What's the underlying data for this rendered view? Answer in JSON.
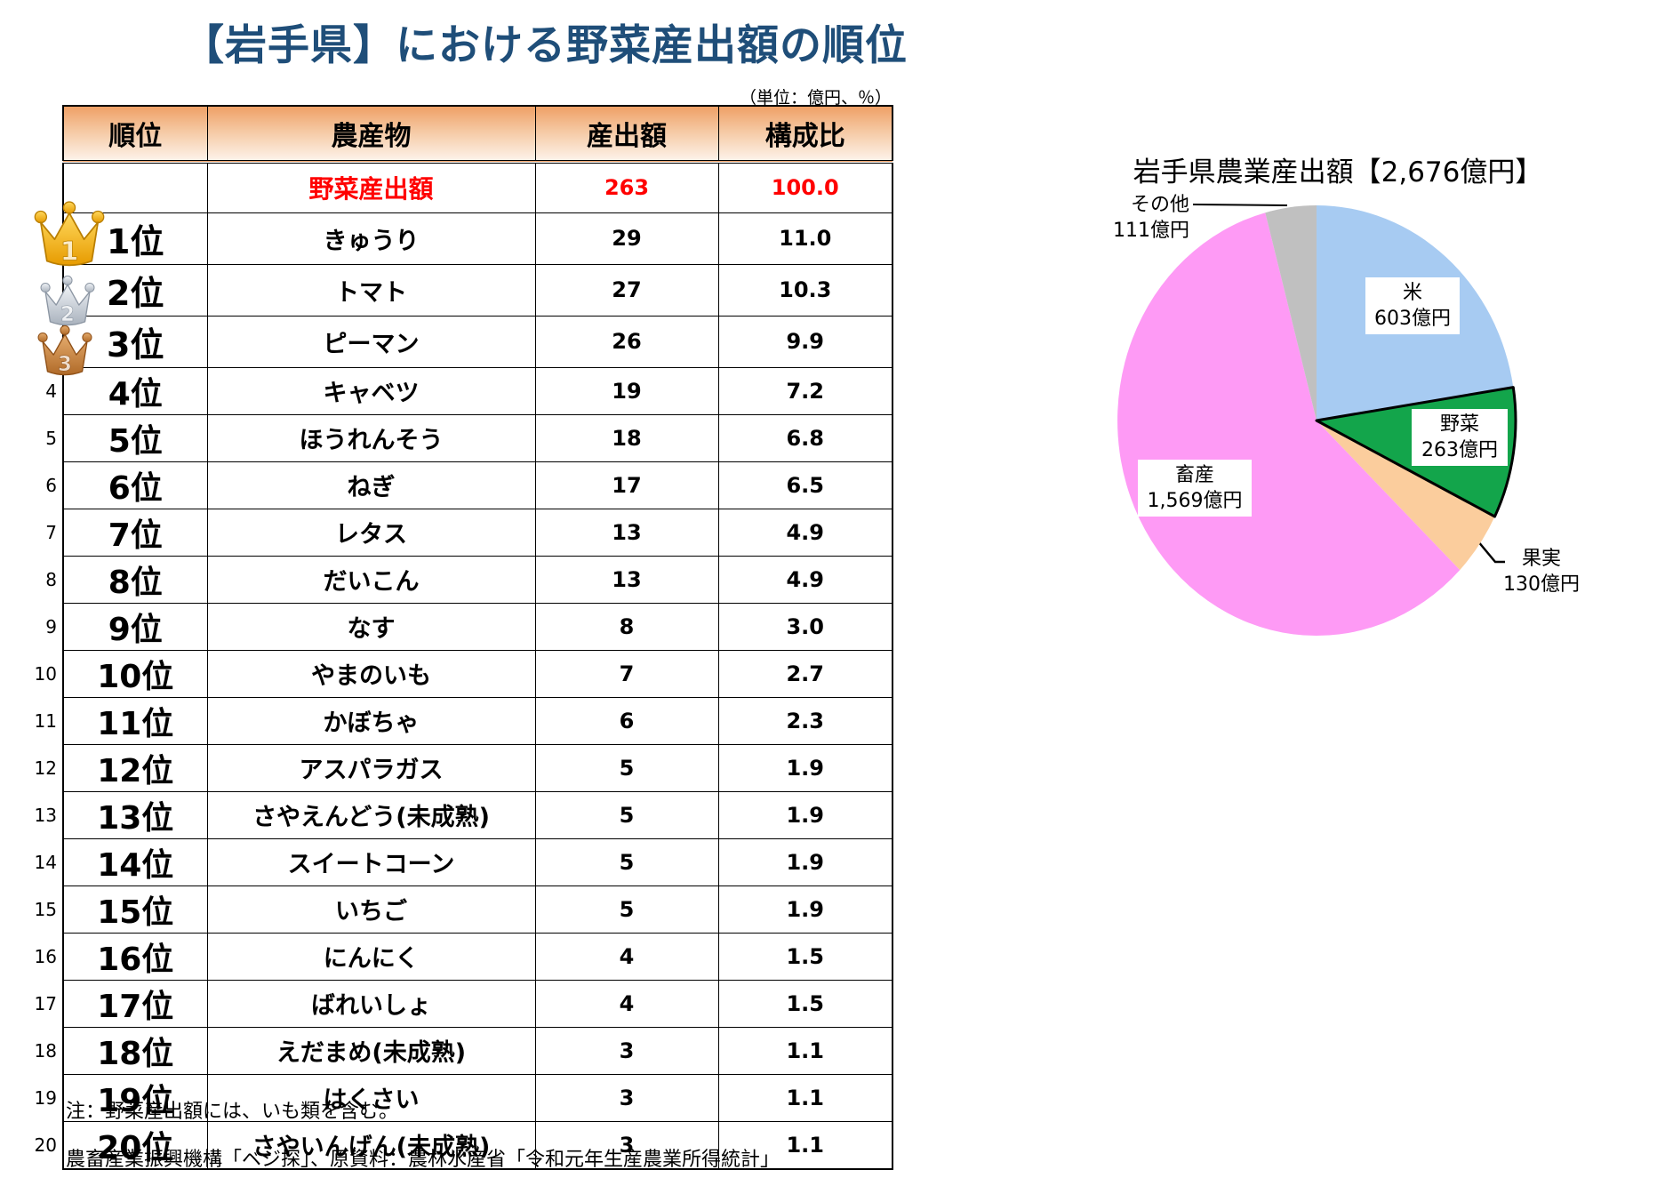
{
  "title": "【岩手県】における野菜産出額の順位",
  "unit_note": "（単位：億円、％）",
  "table": {
    "headers": [
      "順位",
      "農産物",
      "産出額",
      "構成比"
    ],
    "total_row": {
      "rank": "",
      "product": "野菜産出額",
      "value": "263",
      "share": "100.0"
    },
    "rows": [
      {
        "rank": "1位",
        "crown": "gold",
        "crown_number": "1",
        "product": "きゅうり",
        "value": "29",
        "share": "11.0"
      },
      {
        "rank": "2位",
        "crown": "silver",
        "crown_number": "2",
        "product": "トマト",
        "value": "27",
        "share": "10.3"
      },
      {
        "rank": "3位",
        "crown": "bronze",
        "crown_number": "3",
        "product": "ピーマン",
        "value": "26",
        "share": "9.9"
      },
      {
        "rank": "4位",
        "margin_no": "4",
        "product": "キャベツ",
        "value": "19",
        "share": "7.2"
      },
      {
        "rank": "5位",
        "margin_no": "5",
        "product": "ほうれんそう",
        "value": "18",
        "share": "6.8"
      },
      {
        "rank": "6位",
        "margin_no": "6",
        "product": "ねぎ",
        "value": "17",
        "share": "6.5"
      },
      {
        "rank": "7位",
        "margin_no": "7",
        "product": "レタス",
        "value": "13",
        "share": "4.9"
      },
      {
        "rank": "8位",
        "margin_no": "8",
        "product": "だいこん",
        "value": "13",
        "share": "4.9"
      },
      {
        "rank": "9位",
        "margin_no": "9",
        "product": "なす",
        "value": "8",
        "share": "3.0"
      },
      {
        "rank": "10位",
        "margin_no": "10",
        "product": "やまのいも",
        "value": "7",
        "share": "2.7"
      },
      {
        "rank": "11位",
        "margin_no": "11",
        "product": "かぼちゃ",
        "value": "6",
        "share": "2.3"
      },
      {
        "rank": "12位",
        "margin_no": "12",
        "product": "アスパラガス",
        "value": "5",
        "share": "1.9"
      },
      {
        "rank": "13位",
        "margin_no": "13",
        "product": "さやえんどう(未成熟)",
        "value": "5",
        "share": "1.9"
      },
      {
        "rank": "14位",
        "margin_no": "14",
        "product": "スイートコーン",
        "value": "5",
        "share": "1.9"
      },
      {
        "rank": "15位",
        "margin_no": "15",
        "product": "いちご",
        "value": "5",
        "share": "1.9"
      },
      {
        "rank": "16位",
        "margin_no": "16",
        "product": "にんにく",
        "value": "4",
        "share": "1.5"
      },
      {
        "rank": "17位",
        "margin_no": "17",
        "product": "ばれいしょ",
        "value": "4",
        "share": "1.5"
      },
      {
        "rank": "18位",
        "margin_no": "18",
        "product": "えだまめ(未成熟)",
        "value": "3",
        "share": "1.1"
      },
      {
        "rank": "19位",
        "margin_no": "19",
        "product": "はくさい",
        "value": "3",
        "share": "1.1"
      },
      {
        "rank": "20位",
        "margin_no": "20",
        "product": "さやいんげん(未成熟)",
        "value": "3",
        "share": "1.1"
      }
    ]
  },
  "footnotes": [
    "注：野菜産出額には、いも類を含む。",
    "農畜産業振興機構「ベジ探」、原資料：農林水産省「令和元年生産農業所得統計」"
  ],
  "chart_data": {
    "type": "pie",
    "title": "岩手県農業産出額【2,676億円】",
    "total": 2676,
    "unit": "億円",
    "start_angle": "top",
    "direction": "clockwise",
    "legend": "none (inline labels)",
    "slices": [
      {
        "key": "rice",
        "label": "米",
        "value": 603,
        "value_label": "603億円",
        "color": "#A7CBF2",
        "outlined": false,
        "label_style": "boxed-inside"
      },
      {
        "key": "vegetable",
        "label": "野菜",
        "value": 263,
        "value_label": "263億円",
        "color": "#13A54B",
        "outlined": true,
        "label_style": "boxed-inside"
      },
      {
        "key": "fruits",
        "label": "果実",
        "value": 130,
        "value_label": "130億円",
        "color": "#FBCD9D",
        "outlined": false,
        "label_style": "outside-leader"
      },
      {
        "key": "livestock",
        "label": "畜産",
        "value": 1569,
        "value_label": "1,569億円",
        "color": "#FE9AF5",
        "outlined": false,
        "label_style": "boxed-inside"
      },
      {
        "key": "others",
        "label": "その他",
        "value": 111,
        "value_label": "111億円",
        "color": "#C0C0C0",
        "outlined": false,
        "label_style": "outside-leader"
      }
    ],
    "colors": {
      "title_blue": "#1F4E79",
      "highlight_red": "#FF0000",
      "header_orange": "#EFA066",
      "slice_outline": "#000000"
    }
  },
  "crowns": {
    "gold": {
      "main1": "#FFD95E",
      "main2": "#E79B00",
      "stroke": "#B97E00"
    },
    "silver": {
      "main1": "#F0F3F7",
      "main2": "#A9B2BD",
      "stroke": "#8C96A3"
    },
    "bronze": {
      "main1": "#E5AC6E",
      "main2": "#B06A28",
      "stroke": "#8E4F17"
    }
  }
}
